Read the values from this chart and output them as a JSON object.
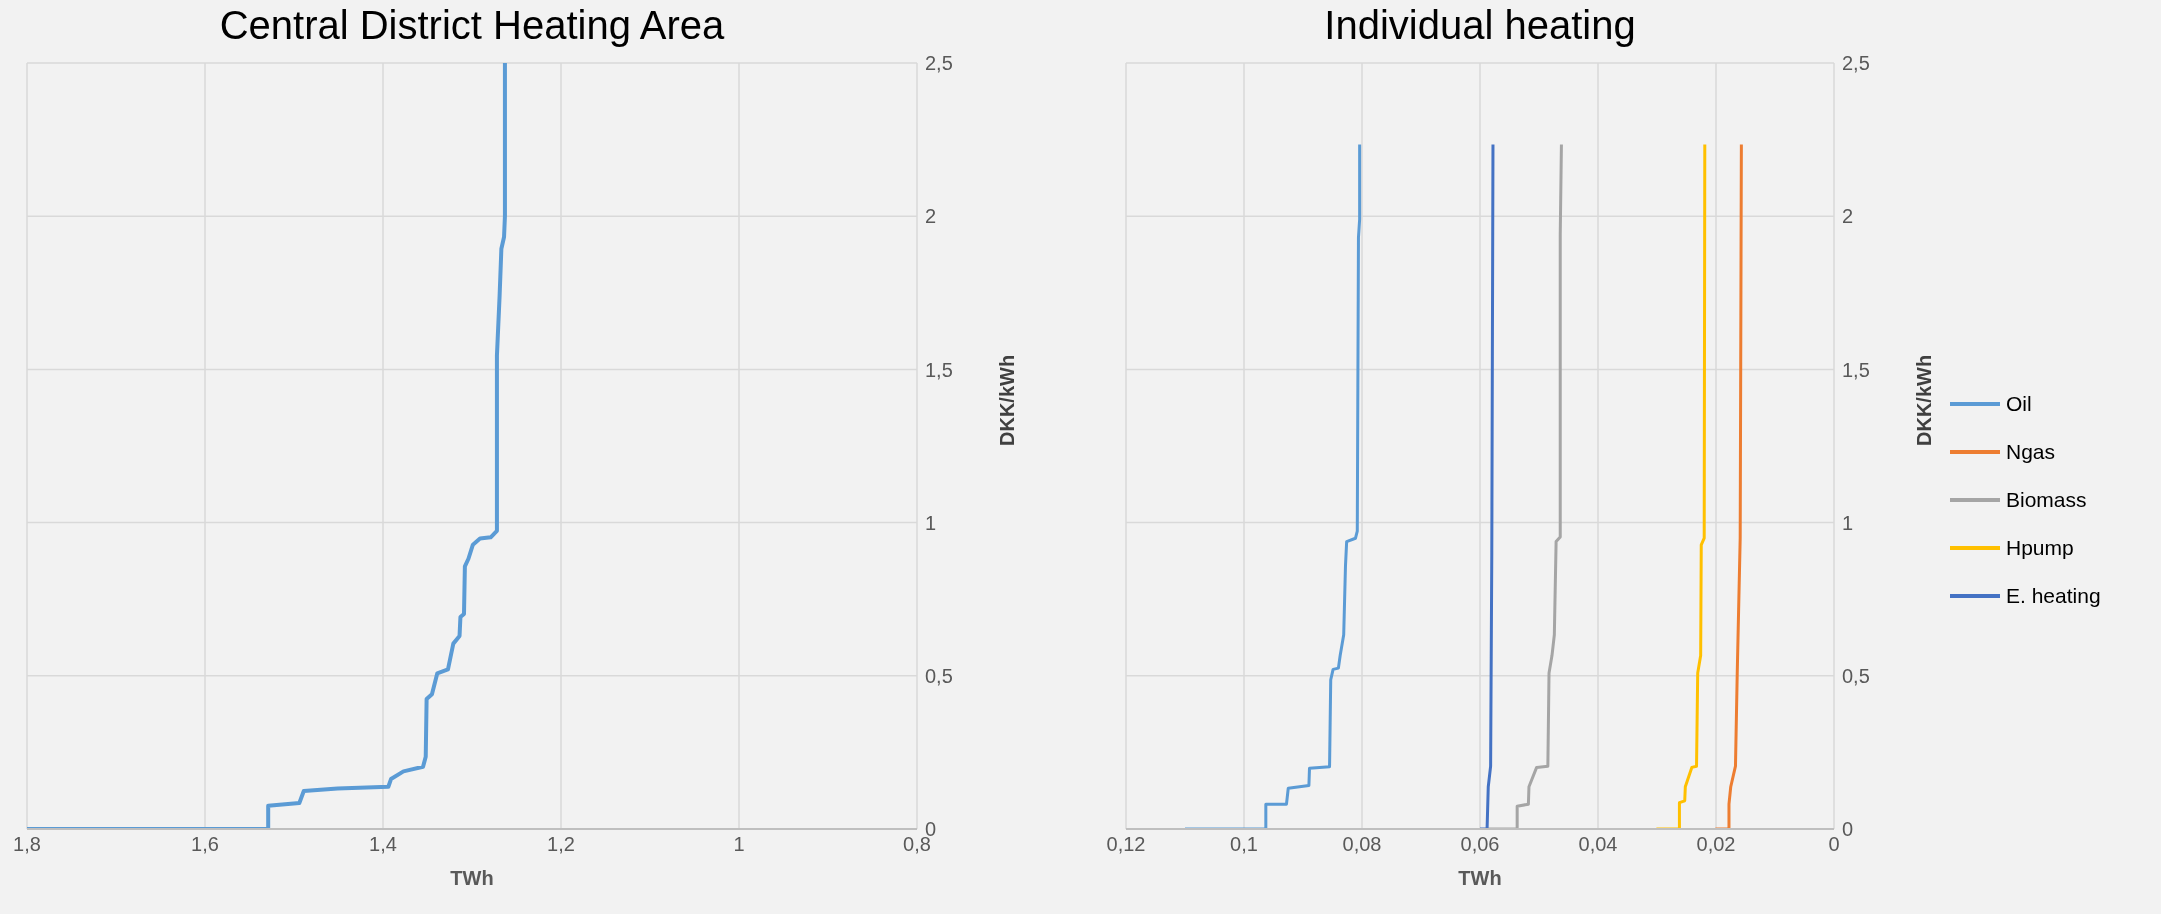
{
  "chart_data": [
    {
      "type": "line",
      "title": "Central District Heating Area",
      "xlabel": "TWh",
      "ylabel": "DKK/kWh",
      "xlim": [
        1.8,
        0.8
      ],
      "xticks": [
        {
          "value": 1.8,
          "label": "1,8"
        },
        {
          "value": 1.6,
          "label": "1,6"
        },
        {
          "value": 1.4,
          "label": "1,4"
        },
        {
          "value": 1.2,
          "label": "1,2"
        },
        1,
        {
          "value": 0.8,
          "label": "0,8"
        }
      ],
      "ylim": [
        0,
        2.5
      ],
      "yticks": [
        0,
        {
          "value": 0.5,
          "label": "0,5"
        },
        1,
        {
          "value": 1.5,
          "label": "1,5"
        },
        2,
        {
          "value": 2.5,
          "label": "2,5"
        }
      ],
      "grid": true,
      "marker": "none",
      "line_style": "solid",
      "legend": false,
      "series": [
        {
          "color": "#5b9bd5",
          "x": [
            1.8,
            1.529,
            1.529,
            1.494,
            1.489,
            1.451,
            1.394,
            1.391,
            1.377,
            1.355,
            1.352,
            1.351,
            1.345,
            1.339,
            1.327,
            1.321,
            1.314,
            1.313,
            1.309,
            1.308,
            1.304,
            1.299,
            1.291,
            1.279,
            1.272,
            1.272,
            1.269,
            1.267,
            1.264,
            1.263,
            1.263
          ],
          "values": [
            0,
            0,
            0.076,
            0.085,
            0.124,
            0.132,
            0.138,
            0.163,
            0.188,
            0.203,
            0.236,
            0.424,
            0.44,
            0.508,
            0.521,
            0.605,
            0.63,
            0.692,
            0.702,
            0.857,
            0.882,
            0.928,
            0.948,
            0.952,
            0.973,
            1.545,
            1.739,
            1.894,
            1.932,
            2.0,
            2.5
          ]
        }
      ]
    },
    {
      "type": "line",
      "title": "Individual heating",
      "xlabel": "TWh",
      "ylabel": "DKK/kWh",
      "xlim": [
        0.12,
        0
      ],
      "xticks": [
        {
          "value": 0.12,
          "label": "0,12"
        },
        {
          "value": 0.1,
          "label": "0,1"
        },
        {
          "value": 0.08,
          "label": "0,08"
        },
        {
          "value": 0.06,
          "label": "0,06"
        },
        {
          "value": 0.04,
          "label": "0,04"
        },
        {
          "value": 0.02,
          "label": "0,02"
        },
        0
      ],
      "ylim": [
        0,
        2.5
      ],
      "yticks": [
        0,
        {
          "value": 0.5,
          "label": "0,5"
        },
        1,
        {
          "value": 1.5,
          "label": "1,5"
        },
        2,
        {
          "value": 2.5,
          "label": "2,5"
        }
      ],
      "grid": true,
      "marker": "none",
      "line_style": "solid",
      "legend": "right",
      "series": [
        {
          "name": "Oil",
          "color": "#5b9bd5",
          "x": [
            0.11,
            0.0963,
            0.0963,
            0.0928,
            0.0925,
            0.089,
            0.0889,
            0.0855,
            0.0853,
            0.0849,
            0.084,
            0.0837,
            0.0831,
            0.0828,
            0.0826,
            0.0811,
            0.0808,
            0.0806,
            0.0804,
            0.0804
          ],
          "values": [
            0,
            0,
            0.081,
            0.081,
            0.133,
            0.142,
            0.198,
            0.203,
            0.487,
            0.521,
            0.525,
            0.566,
            0.634,
            0.859,
            0.938,
            0.949,
            0.972,
            1.93,
            1.99,
            2.234
          ]
        },
        {
          "name": "Ngas",
          "color": "#ed7d31",
          "x": [
            0.0201,
            0.0178,
            0.0178,
            0.0175,
            0.0167,
            0.0164,
            0.0159,
            0.0157
          ],
          "values": [
            0,
            0,
            0.081,
            0.138,
            0.205,
            0.509,
            0.949,
            2.234
          ]
        },
        {
          "name": "Biomass",
          "color": "#a5a5a5",
          "x": [
            0.0588,
            0.0537,
            0.0537,
            0.0518,
            0.0517,
            0.0504,
            0.0485,
            0.0483,
            0.0478,
            0.0474,
            0.0471,
            0.0464,
            0.0464,
            0.0462
          ],
          "values": [
            0,
            0,
            0.074,
            0.081,
            0.138,
            0.201,
            0.205,
            0.509,
            0.566,
            0.634,
            0.938,
            0.953,
            1.94,
            2.234
          ]
        },
        {
          "name": "Hpump",
          "color": "#ffc000",
          "x": [
            0.0301,
            0.0262,
            0.0262,
            0.0253,
            0.0252,
            0.0241,
            0.0233,
            0.0231,
            0.0226,
            0.0225,
            0.022,
            0.0219
          ],
          "values": [
            0,
            0,
            0.086,
            0.092,
            0.138,
            0.201,
            0.205,
            0.509,
            0.566,
            0.927,
            0.949,
            2.234
          ]
        },
        {
          "name": "E. heating",
          "color": "#4472c4",
          "x": [
            0.06,
            0.0588,
            0.0586,
            0.0582,
            0.058,
            0.0578
          ],
          "values": [
            0,
            0,
            0.138,
            0.205,
            0.904,
            2.234
          ]
        }
      ]
    }
  ]
}
